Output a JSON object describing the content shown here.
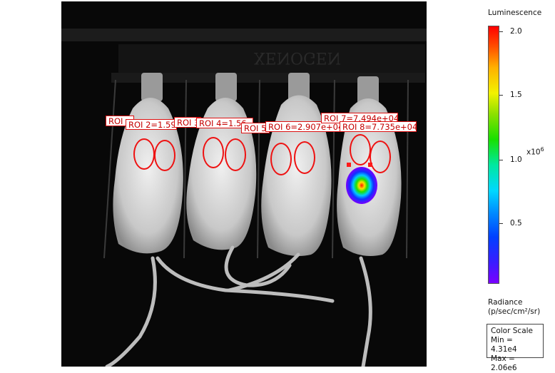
{
  "roi_labels": [
    "ROI 2=1.59",
    "ROI 3",
    "ROI 4=1.56",
    "ROI 5",
    "ROI 6=2.907e+04",
    "ROI 7=7.494e+04",
    "ROI 8=7.735e+04"
  ],
  "roi_partial_label": "ROI",
  "legend": {
    "title": "Luminescence",
    "ticks": [
      "2.0",
      "1.5",
      "1.0",
      "0.5"
    ],
    "multiplier_base": "x10",
    "multiplier_exp": "6",
    "units_line1": "Radiance",
    "units_line2": "(p/sec/cm²/sr)",
    "scale_title": "Color Scale",
    "scale_min": "Min = 4.31e4",
    "scale_max": "Max = 2.06e6",
    "colors": {
      "low": "#7a00ff",
      "mid": "#18e000",
      "high": "#ff0000"
    }
  },
  "image": {
    "manufacturer_text": "XENOGEN"
  }
}
